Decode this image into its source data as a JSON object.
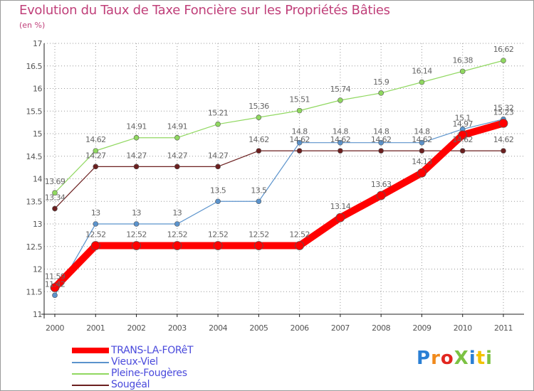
{
  "title": "Evolution du Taux de Taxe Foncière sur les Propriétés Bâties",
  "unit_label": "(en %)",
  "logo_text": "ProXiti",
  "colors": {
    "title": "#c0407a",
    "axis_text": "#555555",
    "value_text": "#666666",
    "legend_text": "#4a4adc",
    "grid": "#999999"
  },
  "chart_data": {
    "type": "line",
    "title": "Evolution du Taux de Taxe Foncière sur les Propriétés Bâties",
    "ylabel": "(en %)",
    "xlabel": "",
    "ylim": [
      11,
      17
    ],
    "yticks": [
      "11",
      "11.5",
      "12",
      "12.5",
      "13",
      "13.5",
      "14",
      "14.5",
      "15",
      "15.5",
      "16",
      "16.5",
      "17"
    ],
    "categories": [
      "2000",
      "2001",
      "2002",
      "2003",
      "2004",
      "2005",
      "2006",
      "2007",
      "2008",
      "2009",
      "2010",
      "2011"
    ],
    "legend_position": "bottom-left",
    "series": [
      {
        "name": "Sougéal",
        "color": "#6b1f1f",
        "width": "thin",
        "values": [
          13.34,
          14.27,
          14.27,
          14.27,
          14.27,
          14.62,
          14.62,
          14.62,
          14.62,
          14.62,
          14.62,
          14.62
        ],
        "labels": [
          "13.34",
          "14.27",
          "14.27",
          "14.27",
          "14.27",
          "14.62",
          "14.62",
          "14.62",
          "14.62",
          "14.62",
          "14.62",
          "14.62"
        ]
      },
      {
        "name": "Pleine-Fougères",
        "color": "#90d860",
        "width": "thin",
        "values": [
          13.69,
          14.62,
          14.91,
          14.91,
          15.21,
          15.36,
          15.51,
          15.74,
          15.9,
          16.14,
          16.38,
          16.62
        ],
        "labels": [
          "13.69",
          "14.62",
          "14.91",
          "14.91",
          "15.21",
          "15.36",
          "15.51",
          "15.74",
          "15.9",
          "16.14",
          "16.38",
          "16.62"
        ]
      },
      {
        "name": "Vieux-Viel",
        "color": "#5b93cc",
        "width": "thin",
        "values": [
          11.42,
          13,
          13,
          13,
          13.5,
          13.5,
          14.8,
          14.8,
          14.8,
          14.8,
          15.1,
          15.32
        ],
        "labels": [
          "11.42",
          "13",
          "13",
          "13",
          "13.5",
          "13.5",
          "14.8",
          "14.8",
          "14.8",
          "14.8",
          "15.1",
          "15.32"
        ]
      },
      {
        "name": "TRANS-LA-FORêT",
        "color": "#ff0000",
        "width": "thick",
        "values": [
          11.59,
          12.52,
          12.52,
          12.52,
          12.52,
          12.52,
          12.52,
          13.14,
          13.63,
          14.13,
          14.97,
          15.23
        ],
        "labels": [
          "11.59",
          "12.52",
          "12.52",
          "12.52",
          "12.52",
          "12.52",
          "12.52",
          "13.14",
          "13.63",
          "14.13",
          "14.97",
          "15.23"
        ]
      }
    ],
    "legend": [
      {
        "name": "TRANS-LA-FORêT",
        "color": "#ff0000",
        "width": "thick"
      },
      {
        "name": "Vieux-Viel",
        "color": "#5b93cc",
        "width": "thin"
      },
      {
        "name": "Pleine-Fougères",
        "color": "#90d860",
        "width": "thin"
      },
      {
        "name": "Sougéal",
        "color": "#6b1f1f",
        "width": "thin"
      }
    ]
  }
}
